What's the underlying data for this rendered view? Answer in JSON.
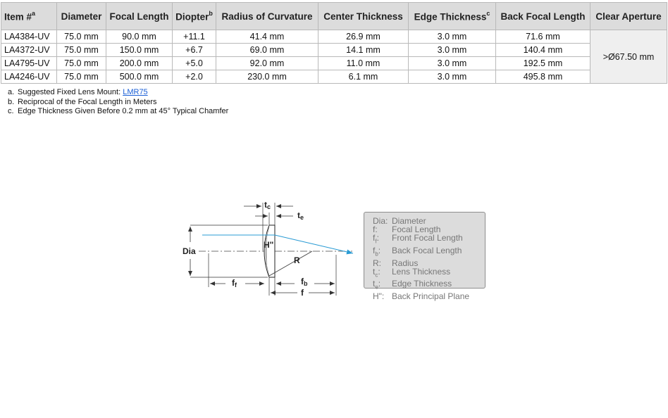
{
  "table": {
    "headers": {
      "item": "Item #",
      "item_sup": "a",
      "diameter": "Diameter",
      "focal_length": "Focal Length",
      "diopter": "Diopter",
      "diopter_sup": "b",
      "radius": "Radius of Curvature",
      "center_thickness": "Center Thickness",
      "edge_thickness": "Edge Thickness",
      "edge_sup": "c",
      "back_focal_length": "Back Focal Length",
      "clear_aperture": "Clear Aperture"
    },
    "rows": [
      {
        "item": "LA4384-UV",
        "diameter": "75.0 mm",
        "focal_length": "90.0 mm",
        "diopter": "+11.1",
        "radius": "41.4 mm",
        "center_thickness": "26.9 mm",
        "edge_thickness": "3.0 mm",
        "back_focal_length": "71.6 mm"
      },
      {
        "item": "LA4372-UV",
        "diameter": "75.0 mm",
        "focal_length": "150.0 mm",
        "diopter": "+6.7",
        "radius": "69.0 mm",
        "center_thickness": "14.1 mm",
        "edge_thickness": "3.0 mm",
        "back_focal_length": "140.4 mm"
      },
      {
        "item": "LA4795-UV",
        "diameter": "75.0 mm",
        "focal_length": "200.0 mm",
        "diopter": "+5.0",
        "radius": "92.0 mm",
        "center_thickness": "11.0 mm",
        "edge_thickness": "3.0 mm",
        "back_focal_length": "192.5 mm"
      },
      {
        "item": "LA4246-UV",
        "diameter": "75.0 mm",
        "focal_length": "500.0 mm",
        "diopter": "+2.0",
        "radius": "230.0 mm",
        "center_thickness": "6.1 mm",
        "edge_thickness": "3.0 mm",
        "back_focal_length": "495.8 mm"
      }
    ],
    "clear_aperture_value": ">Ø67.50 mm"
  },
  "notes": {
    "a_key": "a.",
    "a_text": "Suggested Fixed Lens Mount: ",
    "a_link": "LMR75",
    "b_key": "b.",
    "b_text": "Reciprocal of the Focal Length in Meters",
    "c_key": "c.",
    "c_text": "Edge Thickness Given Before 0.2 mm at 45° Typical Chamfer"
  },
  "diagram": {
    "labels": {
      "dia": "Dia",
      "t": "t",
      "c": "c",
      "e": "e",
      "h": "H\"",
      "r": "R",
      "f": "f",
      "f_sub": "f",
      "b_sub": "b"
    },
    "legend": [
      {
        "sym": "Dia:",
        "sub": "",
        "text": "Diameter"
      },
      {
        "sym": "f:",
        "sub": "",
        "text": "Focal Length"
      },
      {
        "sym": "f",
        "sub": "f",
        "text": "Front Focal Length"
      },
      {
        "sym": "f",
        "sub": "b",
        "text": "Back Focal Length"
      },
      {
        "sym": "R:",
        "sub": "",
        "text": "Radius"
      },
      {
        "sym": "t",
        "sub": "c",
        "text": "Lens Thickness"
      },
      {
        "sym": "t",
        "sub": "e",
        "text": "Edge Thickness"
      },
      {
        "sym": "H\":",
        "sub": "",
        "text": "Back Principal Plane"
      }
    ],
    "ray_color": "#2a9bd4"
  }
}
